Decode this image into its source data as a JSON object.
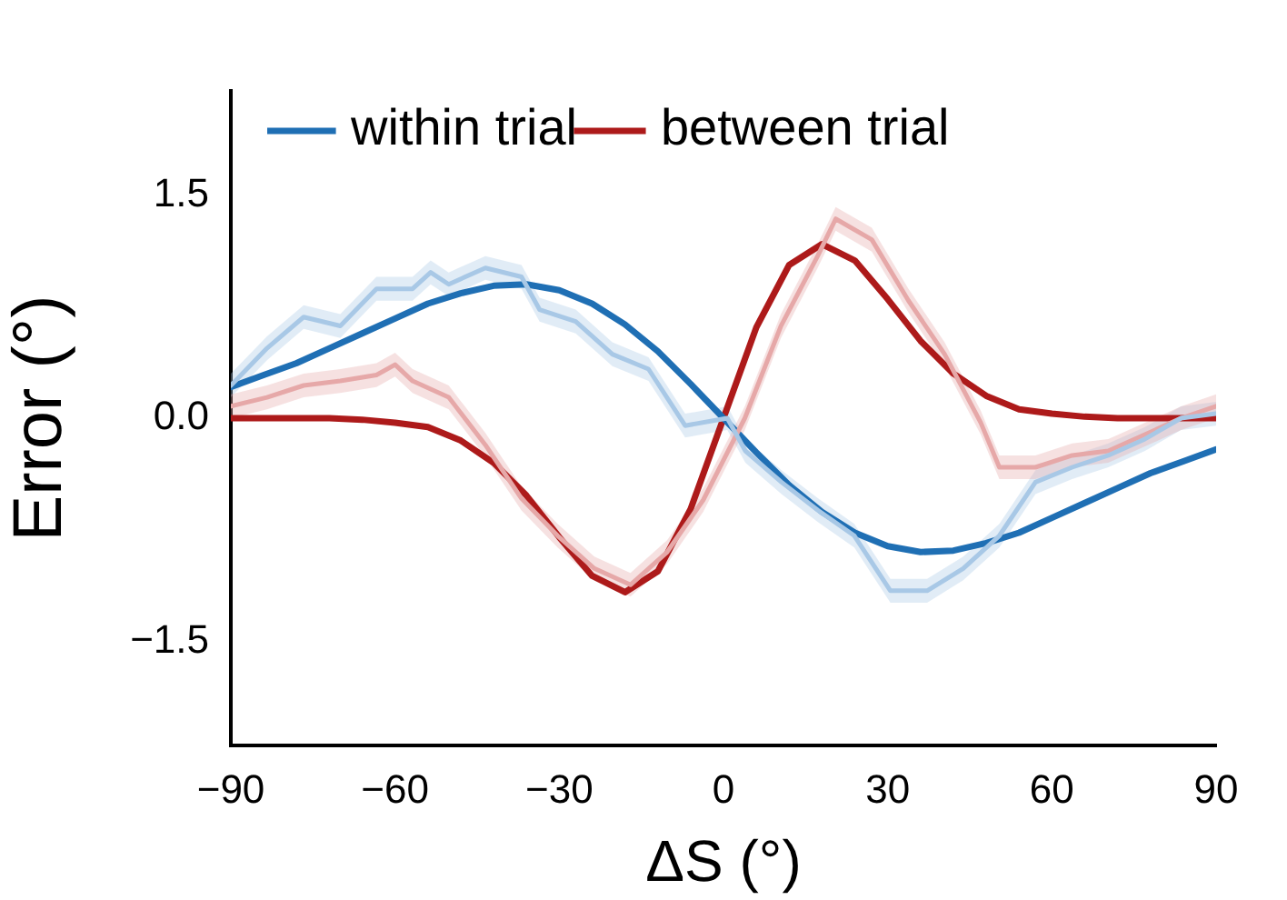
{
  "chart_data": {
    "type": "line",
    "xlabel": "ΔS (°)",
    "ylabel": "Error (°)",
    "xlim": [
      -90,
      90
    ],
    "xticks": [
      {
        "value": -90,
        "label": "−90"
      },
      {
        "value": -60,
        "label": "−60"
      },
      {
        "value": -30,
        "label": "−30"
      },
      0,
      30,
      60,
      90
    ],
    "ylim": [
      -2.2,
      2.2
    ],
    "yticks": [
      {
        "value": -1.5,
        "label": "−1.5"
      },
      {
        "value": 0,
        "label": "0.0"
      },
      1.5
    ],
    "grid": false,
    "legend": "top left",
    "marker": "none",
    "line_style": "solid",
    "series": [
      {
        "color": "#a8c8e6",
        "x": [
          -90,
          -83.4,
          -76.7,
          -70,
          -63.4,
          -56.8,
          -53.5,
          -50.2,
          -43.5,
          -36.9,
          -33.6,
          -27,
          -20.3,
          -13.7,
          -7,
          0.7,
          4,
          10.6,
          17.3,
          23.9,
          30.5,
          37.2,
          43.8,
          50.4,
          57,
          63.7,
          70.3,
          77,
          83.6,
          90
        ],
        "values": [
          0.22,
          0.47,
          0.68,
          0.62,
          0.87,
          0.87,
          0.98,
          0.9,
          1.01,
          0.95,
          0.73,
          0.65,
          0.43,
          0.33,
          -0.05,
          0,
          -0.22,
          -0.43,
          -0.62,
          -0.79,
          -1.16,
          -1.16,
          -1.01,
          -0.79,
          -0.43,
          -0.33,
          -0.25,
          -0.14,
          0,
          0.03
        ],
        "lower": [
          0.14,
          0.39,
          0.6,
          0.54,
          0.79,
          0.79,
          0.9,
          0.82,
          0.93,
          0.87,
          0.65,
          0.57,
          0.35,
          0.25,
          -0.13,
          -0.08,
          -0.3,
          -0.51,
          -0.7,
          -0.87,
          -1.24,
          -1.24,
          -1.09,
          -0.87,
          -0.51,
          -0.41,
          -0.33,
          -0.22,
          -0.08,
          -0.05
        ],
        "upper": [
          0.3,
          0.55,
          0.76,
          0.7,
          0.95,
          0.95,
          1.06,
          0.98,
          1.09,
          1.03,
          0.81,
          0.73,
          0.51,
          0.41,
          0.03,
          0.08,
          -0.14,
          -0.35,
          -0.54,
          -0.71,
          -1.08,
          -1.08,
          -0.93,
          -0.71,
          -0.35,
          -0.25,
          -0.17,
          -0.06,
          0.08,
          0.11
        ]
      },
      {
        "color": "#e6a8a8",
        "x": [
          -90,
          -83.4,
          -76.7,
          -70,
          -63.4,
          -60,
          -56.8,
          -50.2,
          -43.5,
          -36.9,
          -30.3,
          -23.6,
          -17,
          -10.3,
          -3.7,
          3.9,
          10.5,
          17.2,
          20.5,
          27.1,
          33.8,
          40.4,
          47,
          50.4,
          57,
          63.7,
          70.3,
          77,
          83.6,
          90
        ],
        "values": [
          0.08,
          0.14,
          0.22,
          0.25,
          0.29,
          0.36,
          0.25,
          0.14,
          -0.18,
          -0.54,
          -0.79,
          -1.01,
          -1.12,
          -0.9,
          -0.55,
          0,
          0.62,
          1.09,
          1.34,
          1.2,
          0.79,
          0.43,
          -0.03,
          -0.33,
          -0.33,
          -0.25,
          -0.22,
          -0.11,
          0,
          0.08
        ],
        "lower": [
          0,
          0.06,
          0.14,
          0.17,
          0.21,
          0.28,
          0.17,
          0.06,
          -0.26,
          -0.62,
          -0.87,
          -1.09,
          -1.2,
          -0.98,
          -0.63,
          -0.08,
          0.54,
          1.01,
          1.26,
          1.12,
          0.71,
          0.35,
          -0.11,
          -0.41,
          -0.41,
          -0.33,
          -0.3,
          -0.19,
          -0.08,
          0
        ],
        "upper": [
          0.16,
          0.22,
          0.3,
          0.33,
          0.37,
          0.44,
          0.33,
          0.22,
          -0.1,
          -0.46,
          -0.71,
          -0.93,
          -1.04,
          -0.82,
          -0.47,
          0.08,
          0.7,
          1.17,
          1.42,
          1.28,
          0.87,
          0.51,
          0.05,
          -0.25,
          -0.25,
          -0.17,
          -0.14,
          -0.03,
          0.08,
          0.16
        ]
      },
      {
        "name": "within trial",
        "color": "#1f6fb4",
        "x": [
          -90,
          -84,
          -78,
          -72,
          -66,
          -60,
          -54,
          -48,
          -42,
          -36,
          -30,
          -24,
          -18,
          -12,
          -6,
          0,
          6,
          12,
          18,
          24,
          30,
          36,
          42,
          48,
          54,
          60,
          66,
          72,
          78,
          84,
          90
        ],
        "values": [
          0.21,
          0.29,
          0.37,
          0.47,
          0.57,
          0.67,
          0.77,
          0.84,
          0.89,
          0.9,
          0.86,
          0.77,
          0.63,
          0.45,
          0.23,
          0,
          -0.23,
          -0.45,
          -0.63,
          -0.77,
          -0.86,
          -0.9,
          -0.89,
          -0.84,
          -0.77,
          -0.67,
          -0.57,
          -0.47,
          -0.37,
          -0.29,
          -0.21
        ]
      },
      {
        "name": "between trial",
        "color": "#ad1a1a",
        "x": [
          -90,
          -84,
          -78,
          -72,
          -66,
          -60,
          -54,
          -48,
          -42,
          -36,
          -30,
          -24,
          -18,
          -12,
          -6,
          0,
          6,
          12,
          18,
          24,
          30,
          36,
          42,
          48,
          54,
          60,
          66,
          72,
          78,
          84,
          90
        ],
        "values": [
          0,
          0,
          0,
          0,
          -0.01,
          -0.03,
          -0.06,
          -0.15,
          -0.3,
          -0.52,
          -0.8,
          -1.06,
          -1.17,
          -1.03,
          -0.61,
          0,
          0.61,
          1.03,
          1.17,
          1.06,
          0.8,
          0.52,
          0.3,
          0.15,
          0.06,
          0.03,
          0.01,
          0,
          0,
          0,
          0
        ]
      }
    ]
  }
}
